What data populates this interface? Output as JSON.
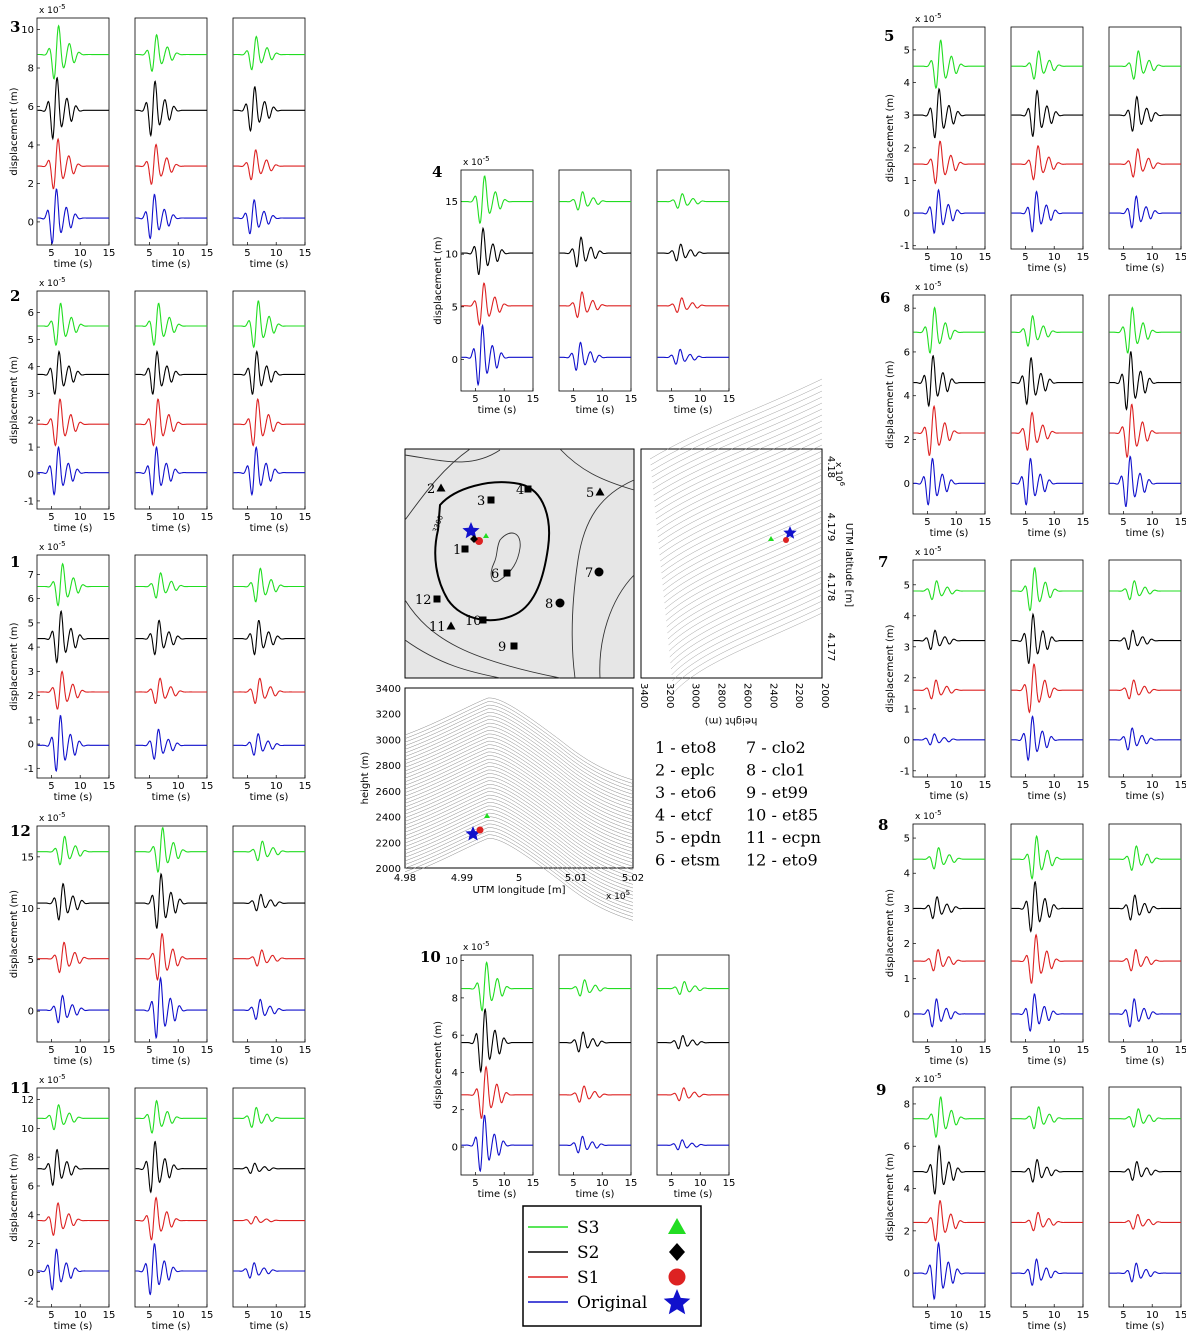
{
  "colors": {
    "S3": "#22dd22",
    "S2": "#000000",
    "S1": "#dd2222",
    "Original": "#1111cc",
    "map_bg": "#e2e2e2",
    "relief": "#8a8a8a"
  },
  "common": {
    "ylabel": "displacement (m)",
    "xlabel": "time (s)",
    "xticks": [
      5,
      10,
      15
    ]
  },
  "station_groups": [
    {
      "id": "3",
      "yticks": [
        0,
        2,
        4,
        6,
        8,
        10
      ],
      "yexp": "-5",
      "offsets": [
        8.7,
        5.8,
        2.9,
        0.2
      ],
      "yrange": [
        -1.2,
        10.6
      ],
      "cols": [
        [
          1.6,
          1.8,
          1.5,
          1.6
        ],
        [
          1.1,
          1.6,
          1.2,
          1.3
        ],
        [
          1.0,
          1.3,
          0.9,
          1.0
        ]
      ]
    },
    {
      "id": "2",
      "yticks": [
        -1,
        0,
        1,
        2,
        3,
        4,
        5,
        6
      ],
      "yexp": "-5",
      "offsets": [
        5.5,
        3.7,
        1.85,
        0.05
      ],
      "yrange": [
        -1.3,
        6.8
      ],
      "cols": [
        [
          0.9,
          0.9,
          1.0,
          1.0
        ],
        [
          0.9,
          0.9,
          1.0,
          1.0
        ],
        [
          1.0,
          0.9,
          1.0,
          1.0
        ]
      ]
    },
    {
      "id": "1",
      "yticks": [
        -1,
        0,
        1,
        2,
        3,
        4,
        5,
        6,
        7
      ],
      "yexp": "-5",
      "offsets": [
        6.5,
        4.35,
        2.15,
        -0.05
      ],
      "yrange": [
        -1.4,
        7.8
      ],
      "cols": [
        [
          1.0,
          1.2,
          0.9,
          1.3
        ],
        [
          0.6,
          0.8,
          0.6,
          0.7
        ],
        [
          0.8,
          0.8,
          0.6,
          0.5
        ]
      ]
    },
    {
      "id": "12",
      "yticks": [
        0,
        5,
        10,
        15
      ],
      "yexp": "-5",
      "offsets": [
        15.5,
        10.5,
        5.1,
        0.1
      ],
      "yrange": [
        -3,
        18
      ],
      "cols": [
        [
          1.6,
          2.0,
          1.7,
          1.5
        ],
        [
          2.5,
          3.0,
          2.6,
          3.3
        ],
        [
          1.1,
          0.9,
          0.9,
          1.1
        ]
      ]
    },
    {
      "id": "11",
      "yticks": [
        -2,
        0,
        2,
        4,
        6,
        8,
        10,
        12
      ],
      "yexp": "-5",
      "offsets": [
        10.7,
        7.2,
        3.6,
        0.1
      ],
      "yrange": [
        -2.4,
        12.8
      ],
      "cols": [
        [
          1.0,
          1.4,
          1.3,
          1.6
        ],
        [
          1.3,
          2.0,
          1.7,
          2.0
        ],
        [
          0.8,
          0.4,
          0.3,
          0.6
        ]
      ]
    },
    {
      "id": "4",
      "yticks": [
        0,
        5,
        10,
        15
      ],
      "yexp": "-5",
      "offsets": [
        15.0,
        10.1,
        5.1,
        0.2
      ],
      "yrange": [
        -3,
        18
      ],
      "cols": [
        [
          2.6,
          2.5,
          2.3,
          3.2
        ],
        [
          1.0,
          1.6,
          1.4,
          1.5
        ],
        [
          0.8,
          0.9,
          0.8,
          0.8
        ]
      ]
    },
    {
      "id": "10",
      "yticks": [
        0,
        2,
        4,
        6,
        8,
        10
      ],
      "yexp": "-5",
      "offsets": [
        8.5,
        5.6,
        2.8,
        0.1
      ],
      "yrange": [
        -1.5,
        10.3
      ],
      "cols": [
        [
          1.5,
          1.9,
          1.6,
          1.7
        ],
        [
          0.5,
          0.6,
          0.5,
          0.5
        ],
        [
          0.4,
          0.4,
          0.4,
          0.3
        ]
      ]
    },
    {
      "id": "5",
      "yticks": [
        -1,
        0,
        1,
        2,
        3,
        4,
        5
      ],
      "yexp": "-5",
      "offsets": [
        4.5,
        3.0,
        1.5,
        0.0
      ],
      "yrange": [
        -1.1,
        5.7
      ],
      "cols": [
        [
          0.85,
          0.85,
          0.75,
          0.75
        ],
        [
          0.5,
          0.8,
          0.6,
          0.7
        ],
        [
          0.5,
          0.6,
          0.5,
          0.55
        ]
      ]
    },
    {
      "id": "6",
      "yticks": [
        0,
        2,
        4,
        6,
        8
      ],
      "yexp": "-5",
      "offsets": [
        6.9,
        4.6,
        2.3,
        0.0
      ],
      "yrange": [
        -1.4,
        8.6
      ],
      "cols": [
        [
          1.2,
          1.3,
          1.3,
          1.2
        ],
        [
          0.8,
          1.2,
          1.0,
          1.2
        ],
        [
          1.2,
          1.5,
          1.4,
          1.3
        ]
      ]
    },
    {
      "id": "7",
      "yticks": [
        -1,
        0,
        1,
        2,
        3,
        4,
        5
      ],
      "yexp": "-5",
      "offsets": [
        4.8,
        3.2,
        1.6,
        0.0
      ],
      "yrange": [
        -1.2,
        5.8
      ],
      "cols": [
        [
          0.35,
          0.35,
          0.35,
          0.2
        ],
        [
          0.8,
          0.9,
          0.9,
          0.8
        ],
        [
          0.35,
          0.35,
          0.35,
          0.4
        ]
      ]
    },
    {
      "id": "8",
      "yticks": [
        0,
        1,
        2,
        3,
        4,
        5
      ],
      "yexp": "-5",
      "offsets": [
        4.4,
        3.0,
        1.5,
        0.0
      ],
      "yrange": [
        -0.8,
        5.4
      ],
      "cols": [
        [
          0.35,
          0.35,
          0.35,
          0.45
        ],
        [
          0.7,
          0.8,
          0.8,
          0.6
        ],
        [
          0.4,
          0.4,
          0.35,
          0.45
        ]
      ]
    },
    {
      "id": "9",
      "yticks": [
        0,
        2,
        4,
        6,
        8
      ],
      "yexp": "-5",
      "offsets": [
        7.3,
        4.8,
        2.4,
        0.0
      ],
      "yrange": [
        -1.6,
        8.8
      ],
      "cols": [
        [
          1.1,
          1.3,
          1.1,
          1.5
        ],
        [
          0.6,
          0.6,
          0.5,
          0.7
        ],
        [
          0.5,
          0.5,
          0.4,
          0.5
        ]
      ]
    }
  ],
  "map": {
    "xticks": [
      "4.98",
      "4.99",
      "5",
      "5.01",
      "5.02"
    ],
    "xexp": "x 10",
    "xexp_pow": "5",
    "xlabel": "UTM longitude [m]",
    "yticks_h": [
      "3400",
      "3200",
      "3000",
      "2800",
      "2600",
      "2400",
      "2200",
      "2000"
    ],
    "ylabel_h": "height (m)",
    "lat_ticks": [
      "4.18",
      "4.179",
      "4.178",
      "4.177"
    ],
    "lat_label": "UTM latitude [m]",
    "lat_exp": "x 10",
    "lat_exp_pow": "6",
    "side_xticks": [
      "3400",
      "3200",
      "3000",
      "2800",
      "2600",
      "2400",
      "2200",
      "2000"
    ],
    "side_label": "height (m)",
    "contour_label": "3300",
    "stations": [
      {
        "n": "1",
        "marker": "square"
      },
      {
        "n": "2",
        "marker": "triangle"
      },
      {
        "n": "3",
        "marker": "square"
      },
      {
        "n": "4",
        "marker": "square"
      },
      {
        "n": "5",
        "marker": "triangle"
      },
      {
        "n": "6",
        "marker": "square"
      },
      {
        "n": "7",
        "marker": "circle"
      },
      {
        "n": "8",
        "marker": "circle"
      },
      {
        "n": "9",
        "marker": "square"
      },
      {
        "n": "10",
        "marker": "square"
      },
      {
        "n": "11",
        "marker": "triangle"
      },
      {
        "n": "12",
        "marker": "square"
      }
    ],
    "key_left": [
      "1 - eto8",
      "2 - eplc",
      "3 - eto6",
      "4 - etcf",
      "5 - epdn",
      "6 - etsm"
    ],
    "key_right": [
      "7 - clo2",
      "8 - clo1",
      "9 - et99",
      "10 - et85",
      "11 - ecpn",
      "12 - eto9"
    ]
  },
  "legend": [
    {
      "label": "S3",
      "marker": "triangle"
    },
    {
      "label": "S2",
      "marker": "diamond"
    },
    {
      "label": "S1",
      "marker": "circle"
    },
    {
      "label": "Original",
      "marker": "star"
    }
  ]
}
